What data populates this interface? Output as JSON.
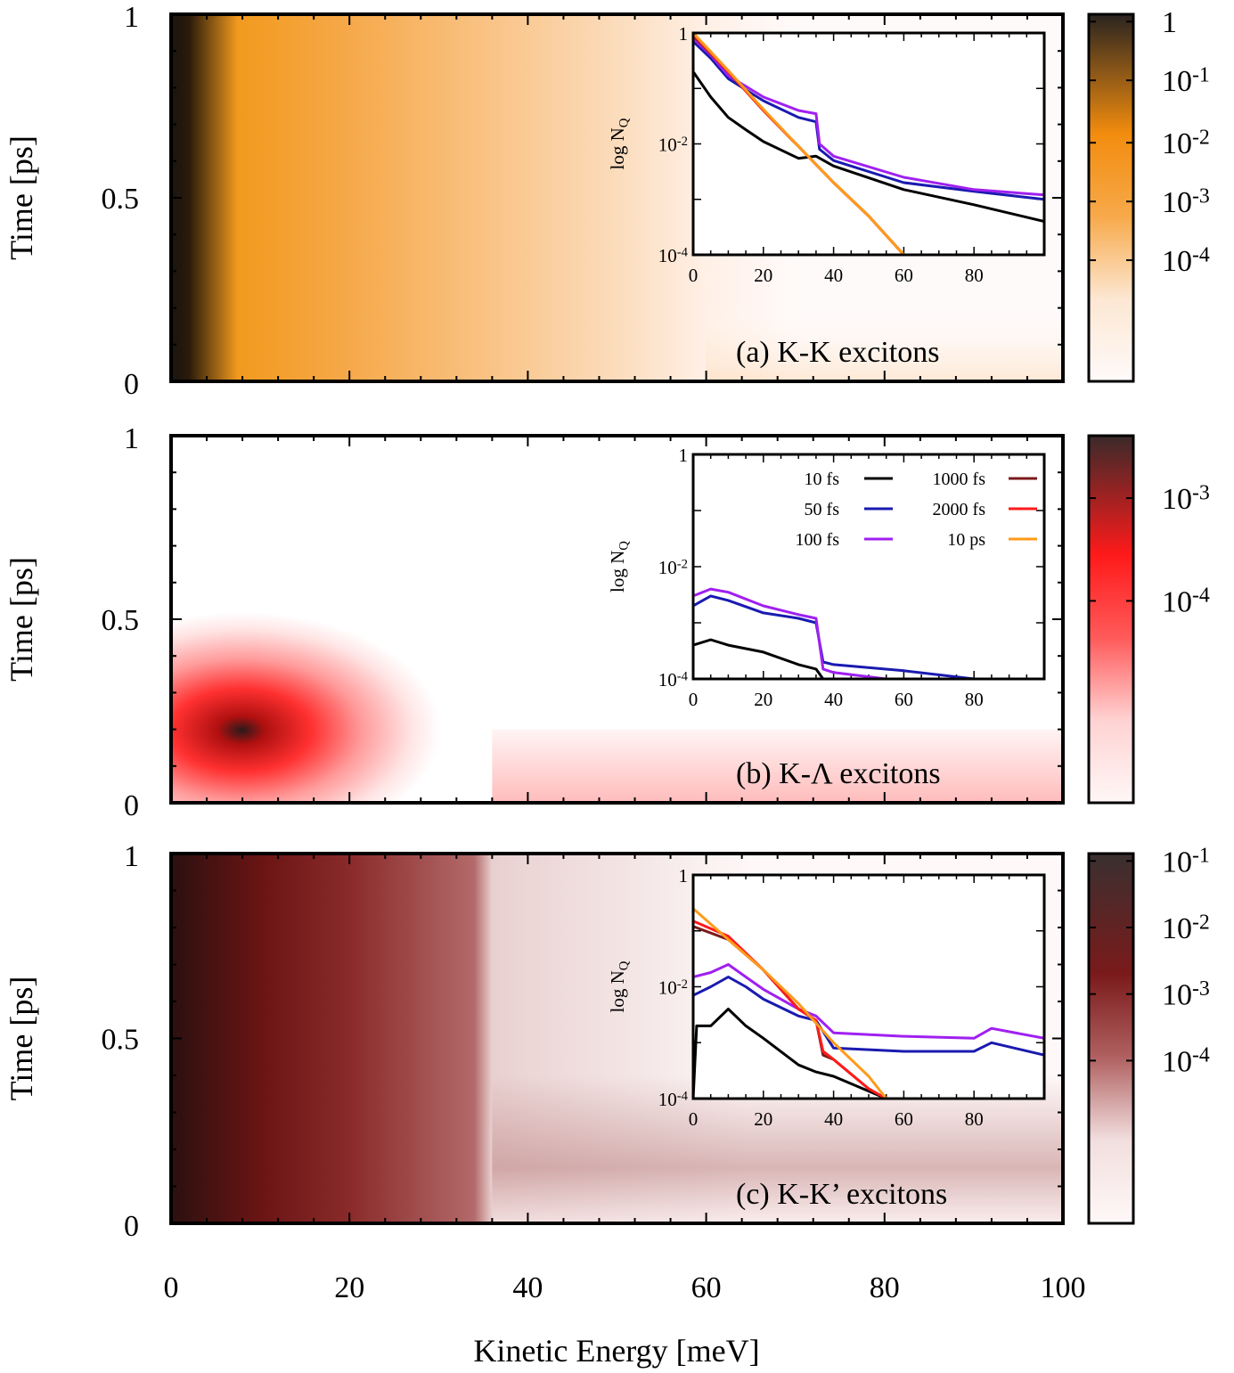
{
  "chart_data": {
    "type": "heatmap",
    "xlabel": "Kinetic Energy [meV]",
    "ylabel": "Time [ps]",
    "xlim": [
      0,
      100
    ],
    "ylim": [
      0,
      1
    ],
    "x_ticks": [
      "0",
      "20",
      "40",
      "60",
      "80",
      "100"
    ],
    "y_ticks": [
      "0",
      "0.5",
      "1"
    ],
    "panels": [
      {
        "label": "(a) K-K excitons",
        "colormap": [
          "#fffafa",
          "#fce7d2",
          "#f7a94a",
          "#f28c0e",
          "#2a2420"
        ],
        "colorbar_ticks": [
          "1",
          "10^-1",
          "10^-2",
          "10^-3",
          "10^-4"
        ],
        "colorbar_scale": "log",
        "inset": {
          "ylabel": "log N_Q",
          "y_ticks": [
            "1",
            "10^-2",
            "10^-4"
          ],
          "x_ticks": [
            "0",
            "20",
            "40",
            "60",
            "80"
          ],
          "xlim": [
            0,
            100
          ],
          "ylim": [
            0.0001,
            1
          ],
          "series": [
            {
              "name": "10 fs",
              "color": "#000000",
              "x": [
                0,
                5,
                10,
                15,
                20,
                30,
                35,
                40,
                60,
                80,
                100
              ],
              "y": [
                0.2,
                0.07,
                0.03,
                0.018,
                0.011,
                0.0055,
                0.006,
                0.004,
                0.0015,
                0.0008,
                0.0004
              ]
            },
            {
              "name": "50 fs",
              "color": "#1a1ab0",
              "x": [
                0,
                5,
                10,
                20,
                30,
                35,
                36,
                40,
                60,
                80,
                100
              ],
              "y": [
                0.7,
                0.35,
                0.15,
                0.06,
                0.03,
                0.025,
                0.008,
                0.005,
                0.002,
                0.0014,
                0.001
              ]
            },
            {
              "name": "100 fs",
              "color": "#a020f0",
              "x": [
                0,
                5,
                10,
                20,
                30,
                35,
                36,
                40,
                60,
                80,
                100
              ],
              "y": [
                0.8,
                0.4,
                0.17,
                0.07,
                0.04,
                0.035,
                0.01,
                0.006,
                0.0025,
                0.0015,
                0.0012
              ]
            },
            {
              "name": "1000 fs",
              "color": "#7a1a1a",
              "x": [
                0,
                10,
                20,
                30,
                40,
                50,
                60
              ],
              "y": [
                0.9,
                0.2,
                0.04,
                0.009,
                0.002,
                0.0005,
                0.0001
              ]
            },
            {
              "name": "2000 fs",
              "color": "#ff1a1a",
              "x": [
                0,
                10,
                20,
                30,
                40,
                50,
                60
              ],
              "y": [
                0.95,
                0.2,
                0.04,
                0.009,
                0.002,
                0.0005,
                0.0001
              ]
            },
            {
              "name": "10 ps",
              "color": "#ff9a1a",
              "x": [
                0,
                10,
                20,
                30,
                40,
                50,
                60
              ],
              "y": [
                1.0,
                0.21,
                0.042,
                0.009,
                0.002,
                0.0005,
                0.0001
              ]
            }
          ]
        }
      },
      {
        "label": "(b) K-Λ excitons",
        "colormap": [
          "#fff7f7",
          "#ffd2d2",
          "#ff5a5a",
          "#ff1a1a",
          "#3a2a2a"
        ],
        "colorbar_ticks": [
          "10^-3",
          "10^-4"
        ],
        "colorbar_scale": "log",
        "inset": {
          "ylabel": "log N_Q",
          "y_ticks": [
            "1",
            "10^-2",
            "10^-4"
          ],
          "x_ticks": [
            "0",
            "20",
            "40",
            "60",
            "80"
          ],
          "xlim": [
            0,
            100
          ],
          "ylim": [
            0.0001,
            1
          ],
          "legend": [
            {
              "label": "10 fs",
              "color": "#000000"
            },
            {
              "label": "1000 fs",
              "color": "#7a1a1a"
            },
            {
              "label": "50 fs",
              "color": "#1a1ab0"
            },
            {
              "label": "2000 fs",
              "color": "#ff1a1a"
            },
            {
              "label": "100 fs",
              "color": "#a020f0"
            },
            {
              "label": "10 ps",
              "color": "#ff9a1a"
            }
          ],
          "series": [
            {
              "name": "10 fs",
              "color": "#000000",
              "x": [
                0,
                5,
                10,
                20,
                30,
                35,
                37
              ],
              "y": [
                0.0004,
                0.0005,
                0.0004,
                0.0003,
                0.00018,
                0.00015,
                0.0001
              ]
            },
            {
              "name": "50 fs",
              "color": "#1a1ab0",
              "x": [
                0,
                5,
                10,
                20,
                30,
                35,
                37,
                40,
                60,
                80
              ],
              "y": [
                0.002,
                0.003,
                0.0025,
                0.0015,
                0.0012,
                0.001,
                0.0002,
                0.00018,
                0.00014,
                0.0001
              ]
            },
            {
              "name": "100 fs",
              "color": "#a020f0",
              "x": [
                0,
                5,
                10,
                20,
                30,
                35,
                37,
                40,
                55
              ],
              "y": [
                0.003,
                0.004,
                0.0035,
                0.002,
                0.0014,
                0.0012,
                0.00015,
                0.00013,
                0.0001
              ]
            }
          ]
        }
      },
      {
        "label": "(c) K-K’ excitons",
        "colormap": [
          "#fff8f8",
          "#f2dede",
          "#b06060",
          "#7a1a1a",
          "#3a3030"
        ],
        "colorbar_ticks": [
          "10^-1",
          "10^-2",
          "10^-3",
          "10^-4"
        ],
        "colorbar_scale": "log",
        "inset": {
          "ylabel": "log N_Q",
          "y_ticks": [
            "1",
            "10^-2",
            "10^-4"
          ],
          "x_ticks": [
            "0",
            "20",
            "40",
            "60",
            "80"
          ],
          "xlim": [
            0,
            100
          ],
          "ylim": [
            0.0001,
            1
          ],
          "series": [
            {
              "name": "10 fs",
              "color": "#000000",
              "x": [
                0,
                1,
                5,
                10,
                15,
                20,
                30,
                35,
                40,
                55
              ],
              "y": [
                0.0001,
                0.002,
                0.002,
                0.004,
                0.002,
                0.0012,
                0.0004,
                0.0003,
                0.00025,
                0.0001
              ]
            },
            {
              "name": "50 fs",
              "color": "#1a1ab0",
              "x": [
                0,
                5,
                10,
                15,
                20,
                30,
                35,
                40,
                60,
                80,
                85,
                100
              ],
              "y": [
                0.007,
                0.01,
                0.015,
                0.01,
                0.006,
                0.003,
                0.0025,
                0.0008,
                0.0007,
                0.0007,
                0.001,
                0.0006
              ]
            },
            {
              "name": "100 fs",
              "color": "#a020f0",
              "x": [
                0,
                5,
                10,
                15,
                20,
                30,
                35,
                40,
                60,
                80,
                85,
                100
              ],
              "y": [
                0.015,
                0.018,
                0.025,
                0.015,
                0.009,
                0.004,
                0.003,
                0.0015,
                0.0013,
                0.0012,
                0.0018,
                0.0012
              ]
            },
            {
              "name": "1000 fs",
              "color": "#7a1a1a",
              "x": [
                0,
                10,
                20,
                30,
                35,
                37,
                40,
                50,
                55
              ],
              "y": [
                0.12,
                0.07,
                0.02,
                0.004,
                0.0025,
                0.0006,
                0.0005,
                0.00015,
                0.0001
              ]
            },
            {
              "name": "2000 fs",
              "color": "#ff1a1a",
              "x": [
                0,
                10,
                20,
                30,
                35,
                37,
                40,
                50,
                55
              ],
              "y": [
                0.15,
                0.08,
                0.02,
                0.004,
                0.0025,
                0.0007,
                0.0005,
                0.00015,
                0.0001
              ]
            },
            {
              "name": "10 ps",
              "color": "#ff9a1a",
              "x": [
                0,
                10,
                20,
                30,
                40,
                50,
                55
              ],
              "y": [
                0.25,
                0.07,
                0.02,
                0.005,
                0.001,
                0.00025,
                0.0001
              ]
            }
          ]
        }
      }
    ]
  }
}
